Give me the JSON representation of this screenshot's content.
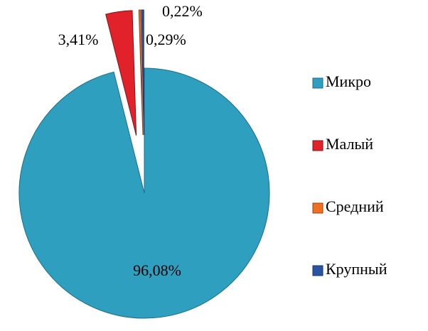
{
  "chart_data": {
    "type": "pie",
    "categories": [
      "Микро",
      "Малый",
      "Средний",
      "Крупный"
    ],
    "values": [
      96.08,
      3.41,
      0.22,
      0.29
    ],
    "value_labels": [
      "96,08%",
      "3,41%",
      "0,22%",
      "0,29%"
    ],
    "colors": [
      "#2f9fbf",
      "#e1222b",
      "#f07022",
      "#2a55a3"
    ],
    "legend": "right"
  }
}
